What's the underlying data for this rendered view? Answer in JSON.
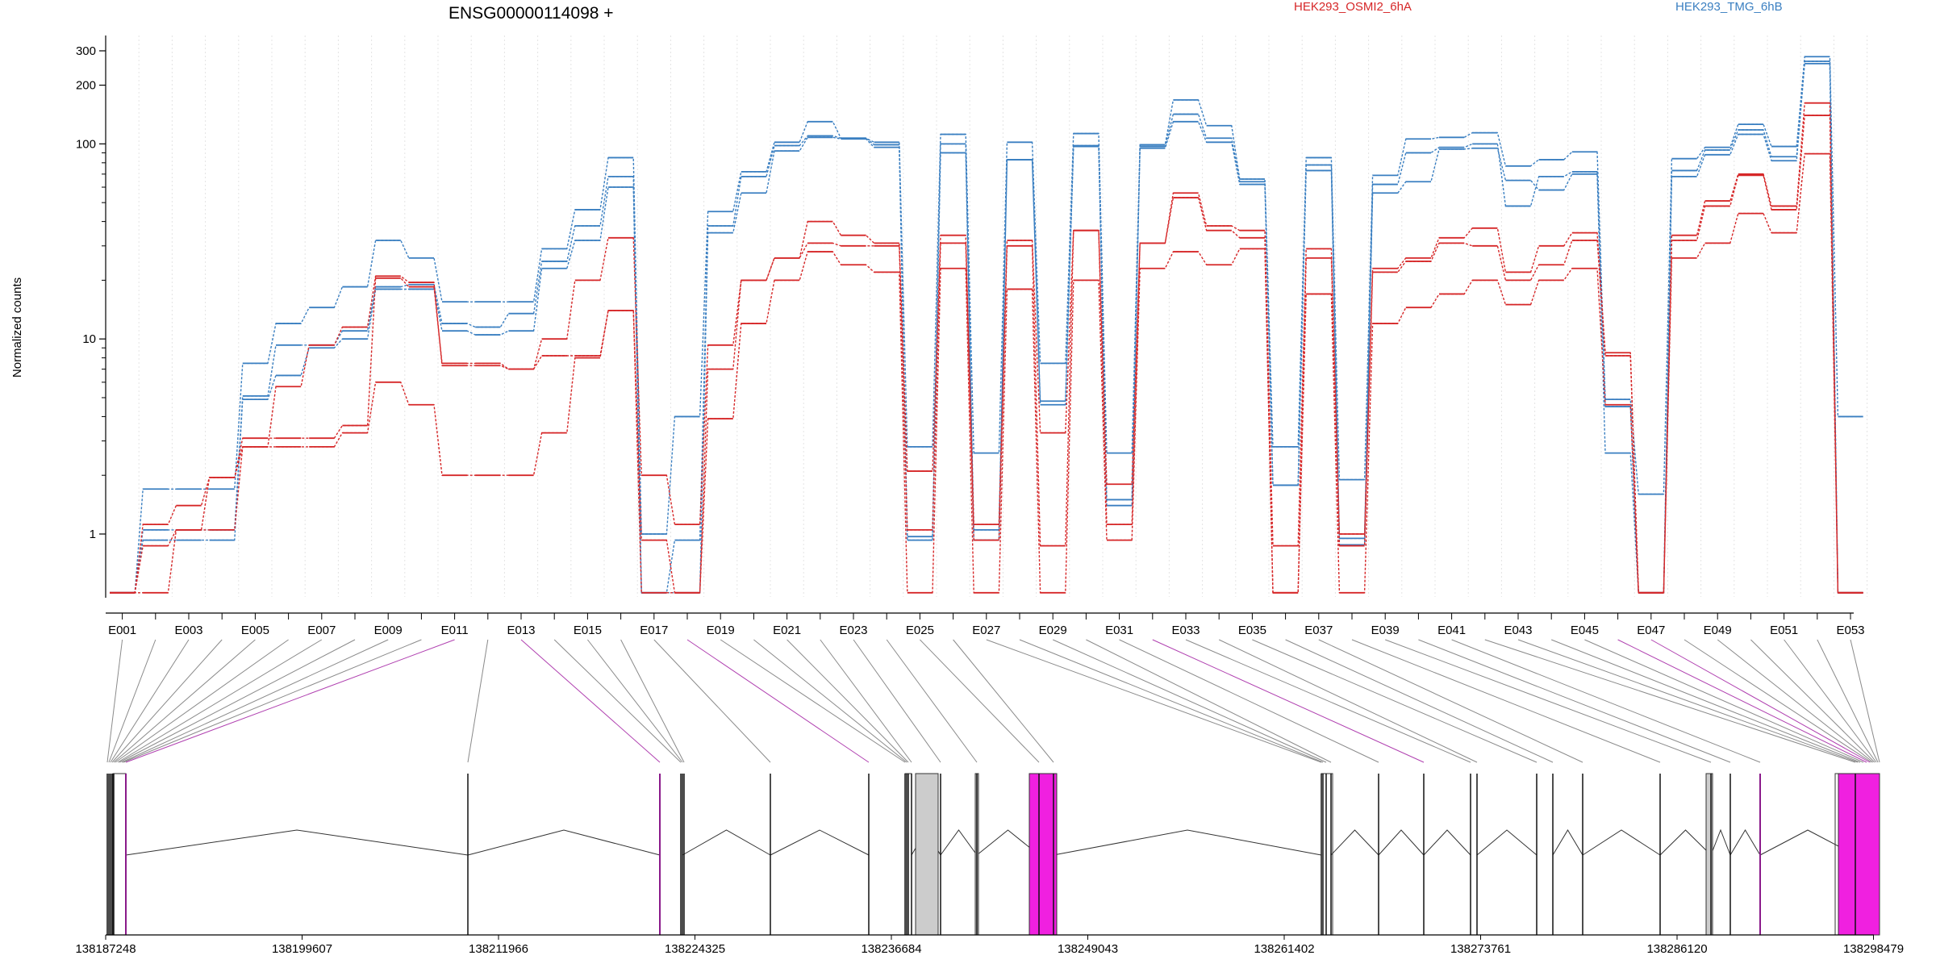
{
  "chart_data": {
    "type": "line",
    "title": "ENSG00000114098 +",
    "ylabel": "Normalized counts",
    "yscale": "log",
    "ylim": [
      0.48,
      350
    ],
    "ytick_values": [
      1,
      10,
      100,
      200,
      300
    ],
    "ytick_labels": [
      "1",
      "10",
      "100",
      "200",
      "300"
    ],
    "grid": "vertical",
    "legend": [
      {
        "name": "HEK293_OSMI2_6hA",
        "color": "#d62728"
      },
      {
        "name": "HEK293_TMG_6hB",
        "color": "#3a7fc1"
      }
    ],
    "bins": [
      "E001",
      "E002",
      "E003",
      "E004",
      "E005",
      "E006",
      "E007",
      "E008",
      "E009",
      "E010",
      "E011",
      "E012",
      "E013",
      "E014",
      "E015",
      "E016",
      "E017",
      "E018",
      "E019",
      "E020",
      "E021",
      "E022",
      "E023",
      "E024",
      "E025",
      "E026",
      "E027",
      "E028",
      "E029",
      "E030",
      "E031",
      "E032",
      "E033",
      "E034",
      "E035",
      "E036",
      "E037",
      "E038",
      "E039",
      "E040",
      "E041",
      "E042",
      "E043",
      "E044",
      "E045",
      "E046",
      "E047",
      "E048",
      "E049",
      "E050",
      "E051",
      "E052",
      "E053"
    ],
    "xtick_labels": [
      "E001",
      "E003",
      "E005",
      "E007",
      "E009",
      "E011",
      "E013",
      "E015",
      "E017",
      "E019",
      "E021",
      "E023",
      "E025",
      "E027",
      "E029",
      "E031",
      "E033",
      "E035",
      "E037",
      "E039",
      "E041",
      "E043",
      "E045",
      "E047",
      "E049",
      "E051",
      "E053"
    ],
    "series": [
      {
        "name": "HEK293_TMG_6hB",
        "color": "#3a7fc1",
        "values": [
          0.5,
          1.7,
          1.7,
          1.7,
          7.5,
          12,
          14.5,
          18.5,
          32,
          26,
          15.5,
          15.5,
          15.5,
          29,
          46,
          85,
          1,
          4,
          45,
          72,
          102,
          130,
          107,
          102,
          2.8,
          112,
          2.6,
          102,
          7.5,
          113,
          2.6,
          99,
          168,
          124,
          66,
          2.8,
          85,
          1.9,
          69,
          106,
          108,
          114,
          77,
          83,
          91,
          4.9,
          1.6,
          84,
          96,
          126,
          97,
          280,
          4
        ]
      },
      {
        "name": "HEK293_TMG_6hB",
        "color": "#3a7fc1",
        "values": [
          0.5,
          1.05,
          1.05,
          1.05,
          5.1,
          9.3,
          9.3,
          11,
          18.5,
          19,
          12,
          11.5,
          13.5,
          25,
          38,
          68,
          0.5,
          0.93,
          38,
          68,
          98,
          110,
          107,
          99,
          0.97,
          100,
          1.05,
          83,
          4.8,
          98,
          1.5,
          97,
          142,
          107,
          64,
          1.78,
          78,
          0.95,
          62,
          90,
          96,
          100,
          48,
          68,
          72,
          4.5,
          0.5,
          73,
          93,
          118,
          86,
          265,
          0.5
        ]
      },
      {
        "name": "HEK293_TMG_6hB",
        "color": "#3a7fc1",
        "values": [
          0.5,
          0.93,
          0.93,
          0.93,
          4.9,
          6.5,
          9,
          10,
          18,
          18,
          11,
          10.5,
          11,
          23,
          32,
          60,
          0.5,
          0.5,
          35,
          56,
          92,
          108,
          106,
          96,
          0.93,
          90,
          0.93,
          83,
          4.6,
          97,
          1.4,
          95,
          130,
          102,
          62,
          1.78,
          73,
          0.88,
          56,
          64,
          94,
          95,
          65,
          58,
          70,
          2.6,
          0.5,
          68,
          88,
          112,
          82,
          258,
          0.5
        ]
      },
      {
        "name": "HEK293_OSMI2_6hA",
        "color": "#d62728",
        "values": [
          0.5,
          1.12,
          1.4,
          1.95,
          3.1,
          3.1,
          3.1,
          3.6,
          20.5,
          18.5,
          7.5,
          7.5,
          7,
          10,
          20,
          33,
          2,
          1.12,
          9.3,
          20,
          26,
          40,
          34,
          31,
          2.1,
          34,
          1.12,
          32,
          3.3,
          36,
          1.8,
          31,
          56,
          38,
          36,
          0.87,
          29,
          1,
          23,
          26,
          33,
          37,
          22,
          30,
          35,
          8.5,
          0.5,
          34,
          51,
          70,
          48,
          162,
          0.5
        ]
      },
      {
        "name": "HEK293_OSMI2_6hA",
        "color": "#d62728",
        "values": [
          0.5,
          0.87,
          1.05,
          1.95,
          2.8,
          5.7,
          9.3,
          11.5,
          21,
          19.5,
          7.3,
          7.3,
          7,
          8.2,
          8.2,
          14,
          0.93,
          0.5,
          7,
          20,
          26,
          31,
          30,
          30,
          1.05,
          31,
          0.93,
          30,
          0.87,
          36,
          1.12,
          31,
          53,
          36,
          33,
          0.5,
          26,
          0.87,
          22,
          25,
          31,
          30,
          20,
          24,
          32,
          8.2,
          0.5,
          32,
          48,
          69,
          46,
          140,
          0.5
        ]
      },
      {
        "name": "HEK293_OSMI2_6hA",
        "color": "#d62728",
        "values": [
          0.5,
          0.5,
          1.05,
          1.05,
          2.8,
          2.8,
          2.8,
          3.3,
          6,
          4.6,
          2,
          2,
          2,
          3.3,
          8,
          14,
          0.5,
          0.5,
          3.9,
          12,
          20,
          28,
          24,
          22,
          0.5,
          23,
          0.5,
          18,
          0.5,
          20,
          0.93,
          23,
          28,
          24,
          29,
          0.5,
          17,
          0.5,
          12,
          14.5,
          17,
          20,
          15,
          20,
          23,
          4.6,
          0.5,
          26,
          31,
          44,
          35,
          89,
          0.5
        ]
      }
    ],
    "genomic_axis_labels": [
      "138187248",
      "138199607",
      "138211966",
      "138224325",
      "138236684",
      "138249043",
      "138261402",
      "138273761",
      "138286120",
      "138298479"
    ],
    "genomic_range": [
      138187248,
      138298479
    ]
  }
}
